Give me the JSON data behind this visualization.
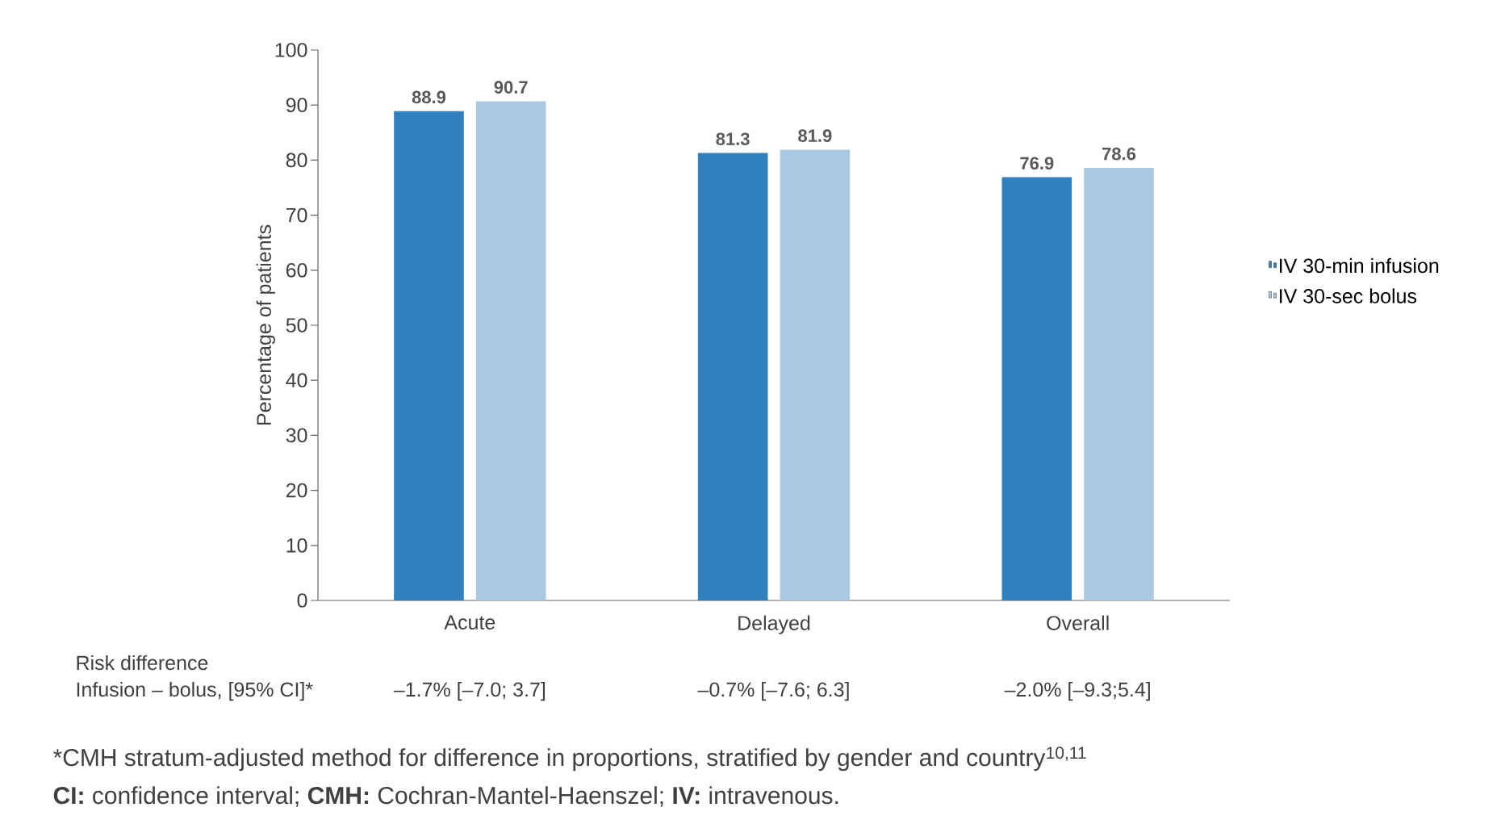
{
  "chart_data": {
    "type": "bar",
    "ylabel": "Percentage of patients",
    "categories": [
      "Acute",
      "Delayed",
      "Overall"
    ],
    "series": [
      {
        "name": "IV 30-min infusion",
        "color": "#3181be",
        "values": [
          88.9,
          81.3,
          76.9
        ]
      },
      {
        "name": "IV 30-sec bolus",
        "color": "#a9c8e2",
        "values": [
          90.7,
          81.9,
          78.6
        ]
      }
    ],
    "ylim": [
      0,
      100
    ],
    "yticks": [
      0,
      10,
      20,
      30,
      40,
      50,
      60,
      70,
      80,
      90,
      100
    ],
    "grid": false,
    "legend": "right",
    "data_labels": true,
    "annotations": [
      "Risk difference",
      "Infusion – bolus, [95% CI]*",
      "–1.7% [–7.0; 3.7]",
      "–0.7% [–7.6; 6.3]",
      "–2.0% [–9.3;5.4]",
      "*CMH stratum-adjusted method for difference in proportions, stratified by gender and country$^{10,11}$",
      "**CI:** confidence interval; **CMH:** Cochran-Mantel-Haenszel; **IV:** intravenous."
    ]
  }
}
